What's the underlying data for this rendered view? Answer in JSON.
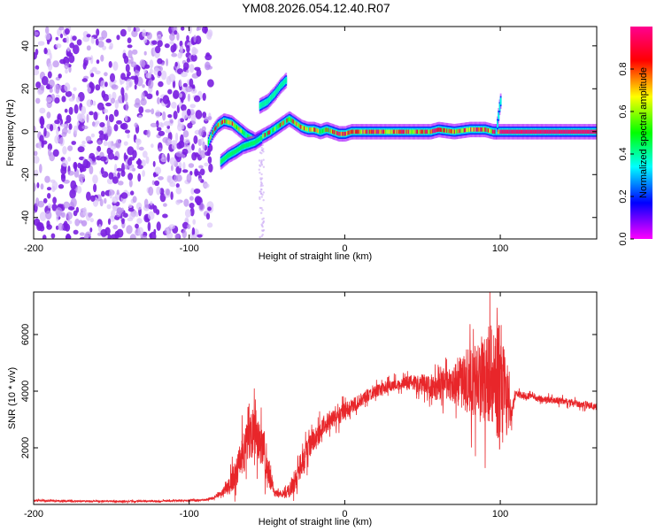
{
  "figure_title": "YM08.2026.054.12.40.R07",
  "chart_data": [
    {
      "type": "heatmap",
      "title": "YM08.2026.054.12.40.R07",
      "xlabel": "Height of straight line (km)",
      "ylabel": "Frequency (Hz)",
      "xlim": [
        -200,
        162
      ],
      "ylim": [
        -50,
        49
      ],
      "xticks": [
        -200,
        -100,
        0,
        100
      ],
      "yticks": [
        -40,
        -20,
        0,
        20,
        40
      ],
      "colorbar": {
        "label": "Normalized spectral amplitude",
        "range": [
          0.0,
          1.0
        ],
        "ticks": [
          0.0,
          0.2,
          0.4,
          0.6,
          0.8
        ],
        "tick_labels": [
          "0.0",
          "0.2",
          "0.4",
          "0.6",
          "0.8"
        ],
        "colormap": [
          "#ff00ff",
          "#0000ff",
          "#00ffff",
          "#00ff00",
          "#ffff00",
          "#ff0000",
          "#ff0090"
        ]
      },
      "noise_region": {
        "x_range": [
          -200,
          -86
        ],
        "y_range": [
          -50,
          49
        ],
        "amplitude": 0.05
      },
      "echo_traces": [
        {
          "name": "main-echo",
          "points": [
            [
              -88,
              -5
            ],
            [
              -85,
              0
            ],
            [
              -82,
              3
            ],
            [
              -78,
              5
            ],
            [
              -73,
              4
            ],
            [
              -68,
              1
            ],
            [
              -63,
              -2
            ],
            [
              -58,
              -4
            ],
            [
              -53,
              -2
            ],
            [
              -48,
              0
            ],
            [
              -44,
              2
            ],
            [
              -40,
              4
            ],
            [
              -36,
              6
            ],
            [
              -32,
              4
            ],
            [
              -28,
              2
            ],
            [
              -24,
              1
            ],
            [
              -20,
              1
            ],
            [
              -16,
              0
            ],
            [
              -12,
              1
            ],
            [
              -8,
              0
            ],
            [
              -4,
              -1
            ],
            [
              0,
              -1
            ],
            [
              4,
              0
            ],
            [
              10,
              0
            ],
            [
              20,
              0
            ],
            [
              40,
              0
            ],
            [
              55,
              0
            ],
            [
              60,
              1
            ],
            [
              70,
              0
            ],
            [
              80,
              1
            ],
            [
              90,
              1
            ],
            [
              95,
              0
            ],
            [
              100,
              0
            ],
            [
              110,
              0
            ],
            [
              130,
              0
            ],
            [
              162,
              0
            ]
          ],
          "amplitude": 0.92
        },
        {
          "name": "lower-branch",
          "points": [
            [
              -80,
              -14
            ],
            [
              -75,
              -11
            ],
            [
              -70,
              -9
            ],
            [
              -66,
              -7
            ],
            [
              -62,
              -6
            ],
            [
              -58,
              -5
            ],
            [
              -54,
              -3
            ]
          ],
          "amplitude": 0.45
        },
        {
          "name": "upper-branch",
          "points": [
            [
              -55,
              12
            ],
            [
              -50,
              14
            ],
            [
              -45,
              18
            ],
            [
              -42,
              21
            ],
            [
              -38,
              24
            ]
          ],
          "amplitude": 0.4
        },
        {
          "name": "spike-near-100km",
          "points": [
            [
              97,
              0
            ],
            [
              98,
              5
            ],
            [
              99,
              11
            ],
            [
              100,
              15
            ]
          ],
          "amplitude": 0.35
        }
      ]
    },
    {
      "type": "line",
      "xlabel": "Height of straight line (km)",
      "ylabel": "SNR (10 * v/v)",
      "xlim": [
        -200,
        162
      ],
      "ylim": [
        0,
        7500
      ],
      "xticks": [
        -200,
        -100,
        0,
        100
      ],
      "yticks": [
        2000,
        4000,
        6000
      ],
      "color": "#e8262a",
      "series": [
        {
          "name": "SNR",
          "x": [
            -200,
            -180,
            -160,
            -140,
            -120,
            -100,
            -90,
            -85,
            -80,
            -75,
            -70,
            -66,
            -62,
            -58,
            -55,
            -52,
            -48,
            -45,
            -42,
            -40,
            -36,
            -32,
            -28,
            -25,
            -22,
            -18,
            -14,
            -10,
            -6,
            -2,
            2,
            6,
            10,
            15,
            20,
            25,
            30,
            35,
            40,
            45,
            50,
            55,
            60,
            65,
            70,
            75,
            80,
            85,
            88,
            90,
            92,
            95,
            98,
            100,
            102,
            104,
            106,
            108,
            110,
            120,
            130,
            140,
            150,
            162
          ],
          "values": [
            140,
            120,
            110,
            110,
            120,
            140,
            160,
            220,
            350,
            600,
            1100,
            1700,
            2200,
            2600,
            2400,
            1800,
            900,
            380,
            350,
            380,
            450,
            800,
            1400,
            1800,
            2100,
            2400,
            2750,
            2950,
            3050,
            3200,
            3350,
            3500,
            3700,
            3850,
            4000,
            4100,
            4200,
            4250,
            4300,
            4280,
            4300,
            4200,
            4100,
            4300,
            4200,
            4350,
            4400,
            4500,
            4700,
            4400,
            4500,
            4600,
            4300,
            4200,
            3800,
            3600,
            3300,
            3400,
            3900,
            3800,
            3700,
            3650,
            3550,
            3450
          ],
          "noise_amplitude": [
            40,
            40,
            40,
            40,
            40,
            40,
            40,
            60,
            100,
            300,
            700,
            900,
            1100,
            1100,
            1100,
            900,
            500,
            150,
            150,
            150,
            300,
            500,
            600,
            600,
            600,
            500,
            500,
            450,
            420,
            400,
            380,
            350,
            320,
            300,
            280,
            260,
            260,
            280,
            300,
            350,
            400,
            500,
            600,
            700,
            800,
            1200,
            1600,
            1900,
            2000,
            2000,
            2100,
            2200,
            2500,
            3000,
            2600,
            1800,
            800,
            300,
            150,
            150,
            150,
            150,
            150,
            150
          ]
        }
      ]
    }
  ]
}
